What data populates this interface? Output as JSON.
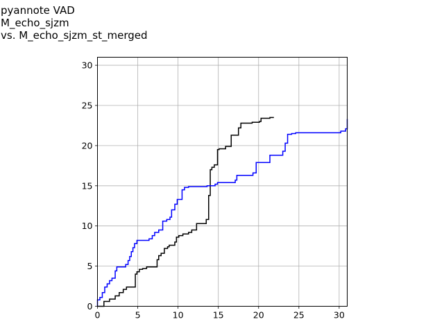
{
  "chart_data": {
    "type": "line",
    "title_lines": [
      "pyannote VAD",
      "M_echo_sjzm",
      "vs. M_echo_sjzm_st_merged"
    ],
    "xlabel": "",
    "ylabel": "",
    "xlim": [
      0,
      31
    ],
    "ylim": [
      0,
      31
    ],
    "xticks": [
      0,
      5,
      10,
      15,
      20,
      25,
      30
    ],
    "yticks": [
      0,
      5,
      10,
      15,
      20,
      25,
      30
    ],
    "grid": true,
    "step": true,
    "series": [
      {
        "color": "#000000",
        "points": [
          [
            0,
            0
          ],
          [
            0.8,
            0
          ],
          [
            0.8,
            0.6
          ],
          [
            1.5,
            0.6
          ],
          [
            1.5,
            0.9
          ],
          [
            2.2,
            0.9
          ],
          [
            2.2,
            1.3
          ],
          [
            2.7,
            1.3
          ],
          [
            2.7,
            1.7
          ],
          [
            3.2,
            1.7
          ],
          [
            3.2,
            2.1
          ],
          [
            3.6,
            2.1
          ],
          [
            3.6,
            2.4
          ],
          [
            4.7,
            2.4
          ],
          [
            4.7,
            4.0
          ],
          [
            4.9,
            4.0
          ],
          [
            4.9,
            4.3
          ],
          [
            5.2,
            4.3
          ],
          [
            5.2,
            4.6
          ],
          [
            5.6,
            4.6
          ],
          [
            5.6,
            4.7
          ],
          [
            6.1,
            4.7
          ],
          [
            6.1,
            4.9
          ],
          [
            7.4,
            4.9
          ],
          [
            7.4,
            5.8
          ],
          [
            7.6,
            5.8
          ],
          [
            7.6,
            6.3
          ],
          [
            7.9,
            6.3
          ],
          [
            7.9,
            6.6
          ],
          [
            8.3,
            6.6
          ],
          [
            8.3,
            7.2
          ],
          [
            8.7,
            7.2
          ],
          [
            8.7,
            7.4
          ],
          [
            8.9,
            7.4
          ],
          [
            8.9,
            7.6
          ],
          [
            9.6,
            7.6
          ],
          [
            9.6,
            8.0
          ],
          [
            9.8,
            8.0
          ],
          [
            9.8,
            8.6
          ],
          [
            10.1,
            8.6
          ],
          [
            10.1,
            8.8
          ],
          [
            10.6,
            8.8
          ],
          [
            10.6,
            9.0
          ],
          [
            11.3,
            9.0
          ],
          [
            11.3,
            9.2
          ],
          [
            11.7,
            9.2
          ],
          [
            11.7,
            9.5
          ],
          [
            12.3,
            9.5
          ],
          [
            12.3,
            10.3
          ],
          [
            13.5,
            10.3
          ],
          [
            13.5,
            10.8
          ],
          [
            13.8,
            10.8
          ],
          [
            13.8,
            13.8
          ],
          [
            14.0,
            13.8
          ],
          [
            14.0,
            17.0
          ],
          [
            14.2,
            17.0
          ],
          [
            14.2,
            17.3
          ],
          [
            14.5,
            17.3
          ],
          [
            14.5,
            17.6
          ],
          [
            14.9,
            17.6
          ],
          [
            14.9,
            19.5
          ],
          [
            15.1,
            19.5
          ],
          [
            15.1,
            19.6
          ],
          [
            15.9,
            19.6
          ],
          [
            15.9,
            19.9
          ],
          [
            16.6,
            19.9
          ],
          [
            16.6,
            21.3
          ],
          [
            17.5,
            21.3
          ],
          [
            17.5,
            22.2
          ],
          [
            17.8,
            22.2
          ],
          [
            17.8,
            22.8
          ],
          [
            19.2,
            22.8
          ],
          [
            19.2,
            22.9
          ],
          [
            20.1,
            22.9
          ],
          [
            20.1,
            23.0
          ],
          [
            20.3,
            23.0
          ],
          [
            20.3,
            23.4
          ],
          [
            21.4,
            23.4
          ],
          [
            21.4,
            23.5
          ],
          [
            21.9,
            23.5
          ]
        ]
      },
      {
        "color": "#0000ff",
        "points": [
          [
            0,
            0
          ],
          [
            0,
            0.8
          ],
          [
            0.3,
            0.8
          ],
          [
            0.3,
            1.1
          ],
          [
            0.6,
            1.1
          ],
          [
            0.6,
            1.7
          ],
          [
            0.9,
            1.7
          ],
          [
            0.9,
            2.4
          ],
          [
            1.2,
            2.4
          ],
          [
            1.2,
            2.8
          ],
          [
            1.5,
            2.8
          ],
          [
            1.5,
            3.2
          ],
          [
            1.8,
            3.2
          ],
          [
            1.8,
            3.5
          ],
          [
            2.2,
            3.5
          ],
          [
            2.2,
            4.4
          ],
          [
            2.4,
            4.4
          ],
          [
            2.4,
            4.9
          ],
          [
            3.5,
            4.9
          ],
          [
            3.5,
            5.2
          ],
          [
            3.8,
            5.2
          ],
          [
            3.8,
            5.7
          ],
          [
            4.0,
            5.7
          ],
          [
            4.0,
            6.2
          ],
          [
            4.2,
            6.2
          ],
          [
            4.2,
            6.8
          ],
          [
            4.4,
            6.8
          ],
          [
            4.4,
            7.3
          ],
          [
            4.6,
            7.3
          ],
          [
            4.6,
            7.8
          ],
          [
            4.9,
            7.8
          ],
          [
            4.9,
            8.2
          ],
          [
            6.4,
            8.2
          ],
          [
            6.4,
            8.4
          ],
          [
            6.8,
            8.4
          ],
          [
            6.8,
            8.8
          ],
          [
            7.1,
            8.8
          ],
          [
            7.1,
            9.2
          ],
          [
            7.6,
            9.2
          ],
          [
            7.6,
            9.5
          ],
          [
            8.1,
            9.5
          ],
          [
            8.1,
            10.6
          ],
          [
            8.6,
            10.6
          ],
          [
            8.6,
            10.8
          ],
          [
            9.0,
            10.8
          ],
          [
            9.0,
            11.1
          ],
          [
            9.2,
            11.1
          ],
          [
            9.2,
            12.0
          ],
          [
            9.6,
            12.0
          ],
          [
            9.6,
            12.7
          ],
          [
            9.9,
            12.7
          ],
          [
            9.9,
            13.3
          ],
          [
            10.5,
            13.3
          ],
          [
            10.5,
            14.5
          ],
          [
            10.8,
            14.5
          ],
          [
            10.8,
            14.8
          ],
          [
            11.3,
            14.8
          ],
          [
            11.3,
            14.9
          ],
          [
            13.6,
            14.9
          ],
          [
            13.6,
            15.0
          ],
          [
            14.6,
            15.0
          ],
          [
            14.6,
            15.2
          ],
          [
            14.9,
            15.2
          ],
          [
            14.9,
            15.4
          ],
          [
            17.1,
            15.4
          ],
          [
            17.1,
            15.7
          ],
          [
            17.3,
            15.7
          ],
          [
            17.3,
            16.3
          ],
          [
            19.3,
            16.3
          ],
          [
            19.3,
            16.6
          ],
          [
            19.7,
            16.6
          ],
          [
            19.7,
            17.9
          ],
          [
            21.4,
            17.9
          ],
          [
            21.4,
            18.8
          ],
          [
            23.0,
            18.8
          ],
          [
            23.0,
            19.3
          ],
          [
            23.3,
            19.3
          ],
          [
            23.3,
            20.3
          ],
          [
            23.6,
            20.3
          ],
          [
            23.6,
            21.4
          ],
          [
            24.1,
            21.4
          ],
          [
            24.1,
            21.5
          ],
          [
            24.6,
            21.5
          ],
          [
            24.6,
            21.6
          ],
          [
            30.2,
            21.6
          ],
          [
            30.2,
            21.8
          ],
          [
            30.8,
            21.8
          ],
          [
            30.8,
            22.1
          ],
          [
            31.0,
            22.1
          ],
          [
            31.0,
            23.3
          ]
        ]
      }
    ]
  }
}
